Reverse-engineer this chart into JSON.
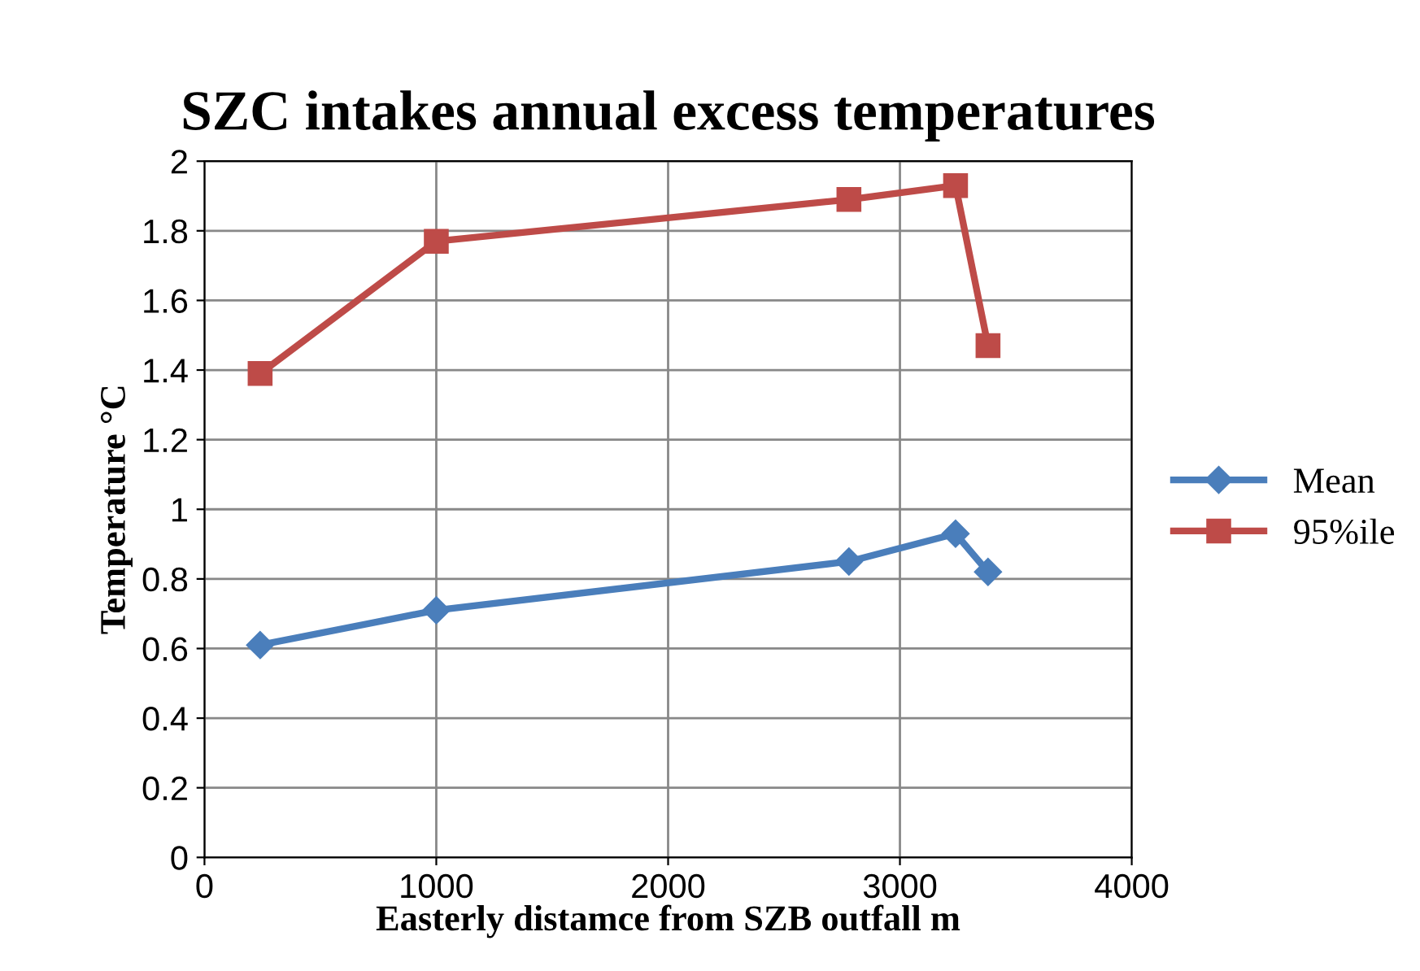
{
  "chart_data": {
    "type": "line",
    "title": "SZC intakes annual excess temperatures",
    "xlabel": "Easterly distamce from SZB outfall m",
    "ylabel": "Temperature °C",
    "xlim": [
      0,
      4000
    ],
    "xticks": [
      0,
      1000,
      2000,
      3000,
      4000
    ],
    "ylim": [
      0,
      2
    ],
    "yticks": [
      0,
      0.2,
      0.4,
      0.6,
      0.8,
      1,
      1.2,
      1.4,
      1.6,
      1.8,
      2
    ],
    "grid": true,
    "legend": "right",
    "line_style": "solid",
    "series": [
      {
        "name": "Mean",
        "color": "#4a7ebb",
        "marker": "diamond",
        "x": [
          240,
          1000,
          2780,
          3240,
          3380
        ],
        "values": [
          0.61,
          0.71,
          0.85,
          0.93,
          0.82
        ]
      },
      {
        "name": "95%ile",
        "color": "#be4b48",
        "marker": "square",
        "x": [
          240,
          1000,
          2780,
          3240,
          3380
        ],
        "values": [
          1.39,
          1.77,
          1.89,
          1.93,
          1.47
        ]
      }
    ]
  }
}
